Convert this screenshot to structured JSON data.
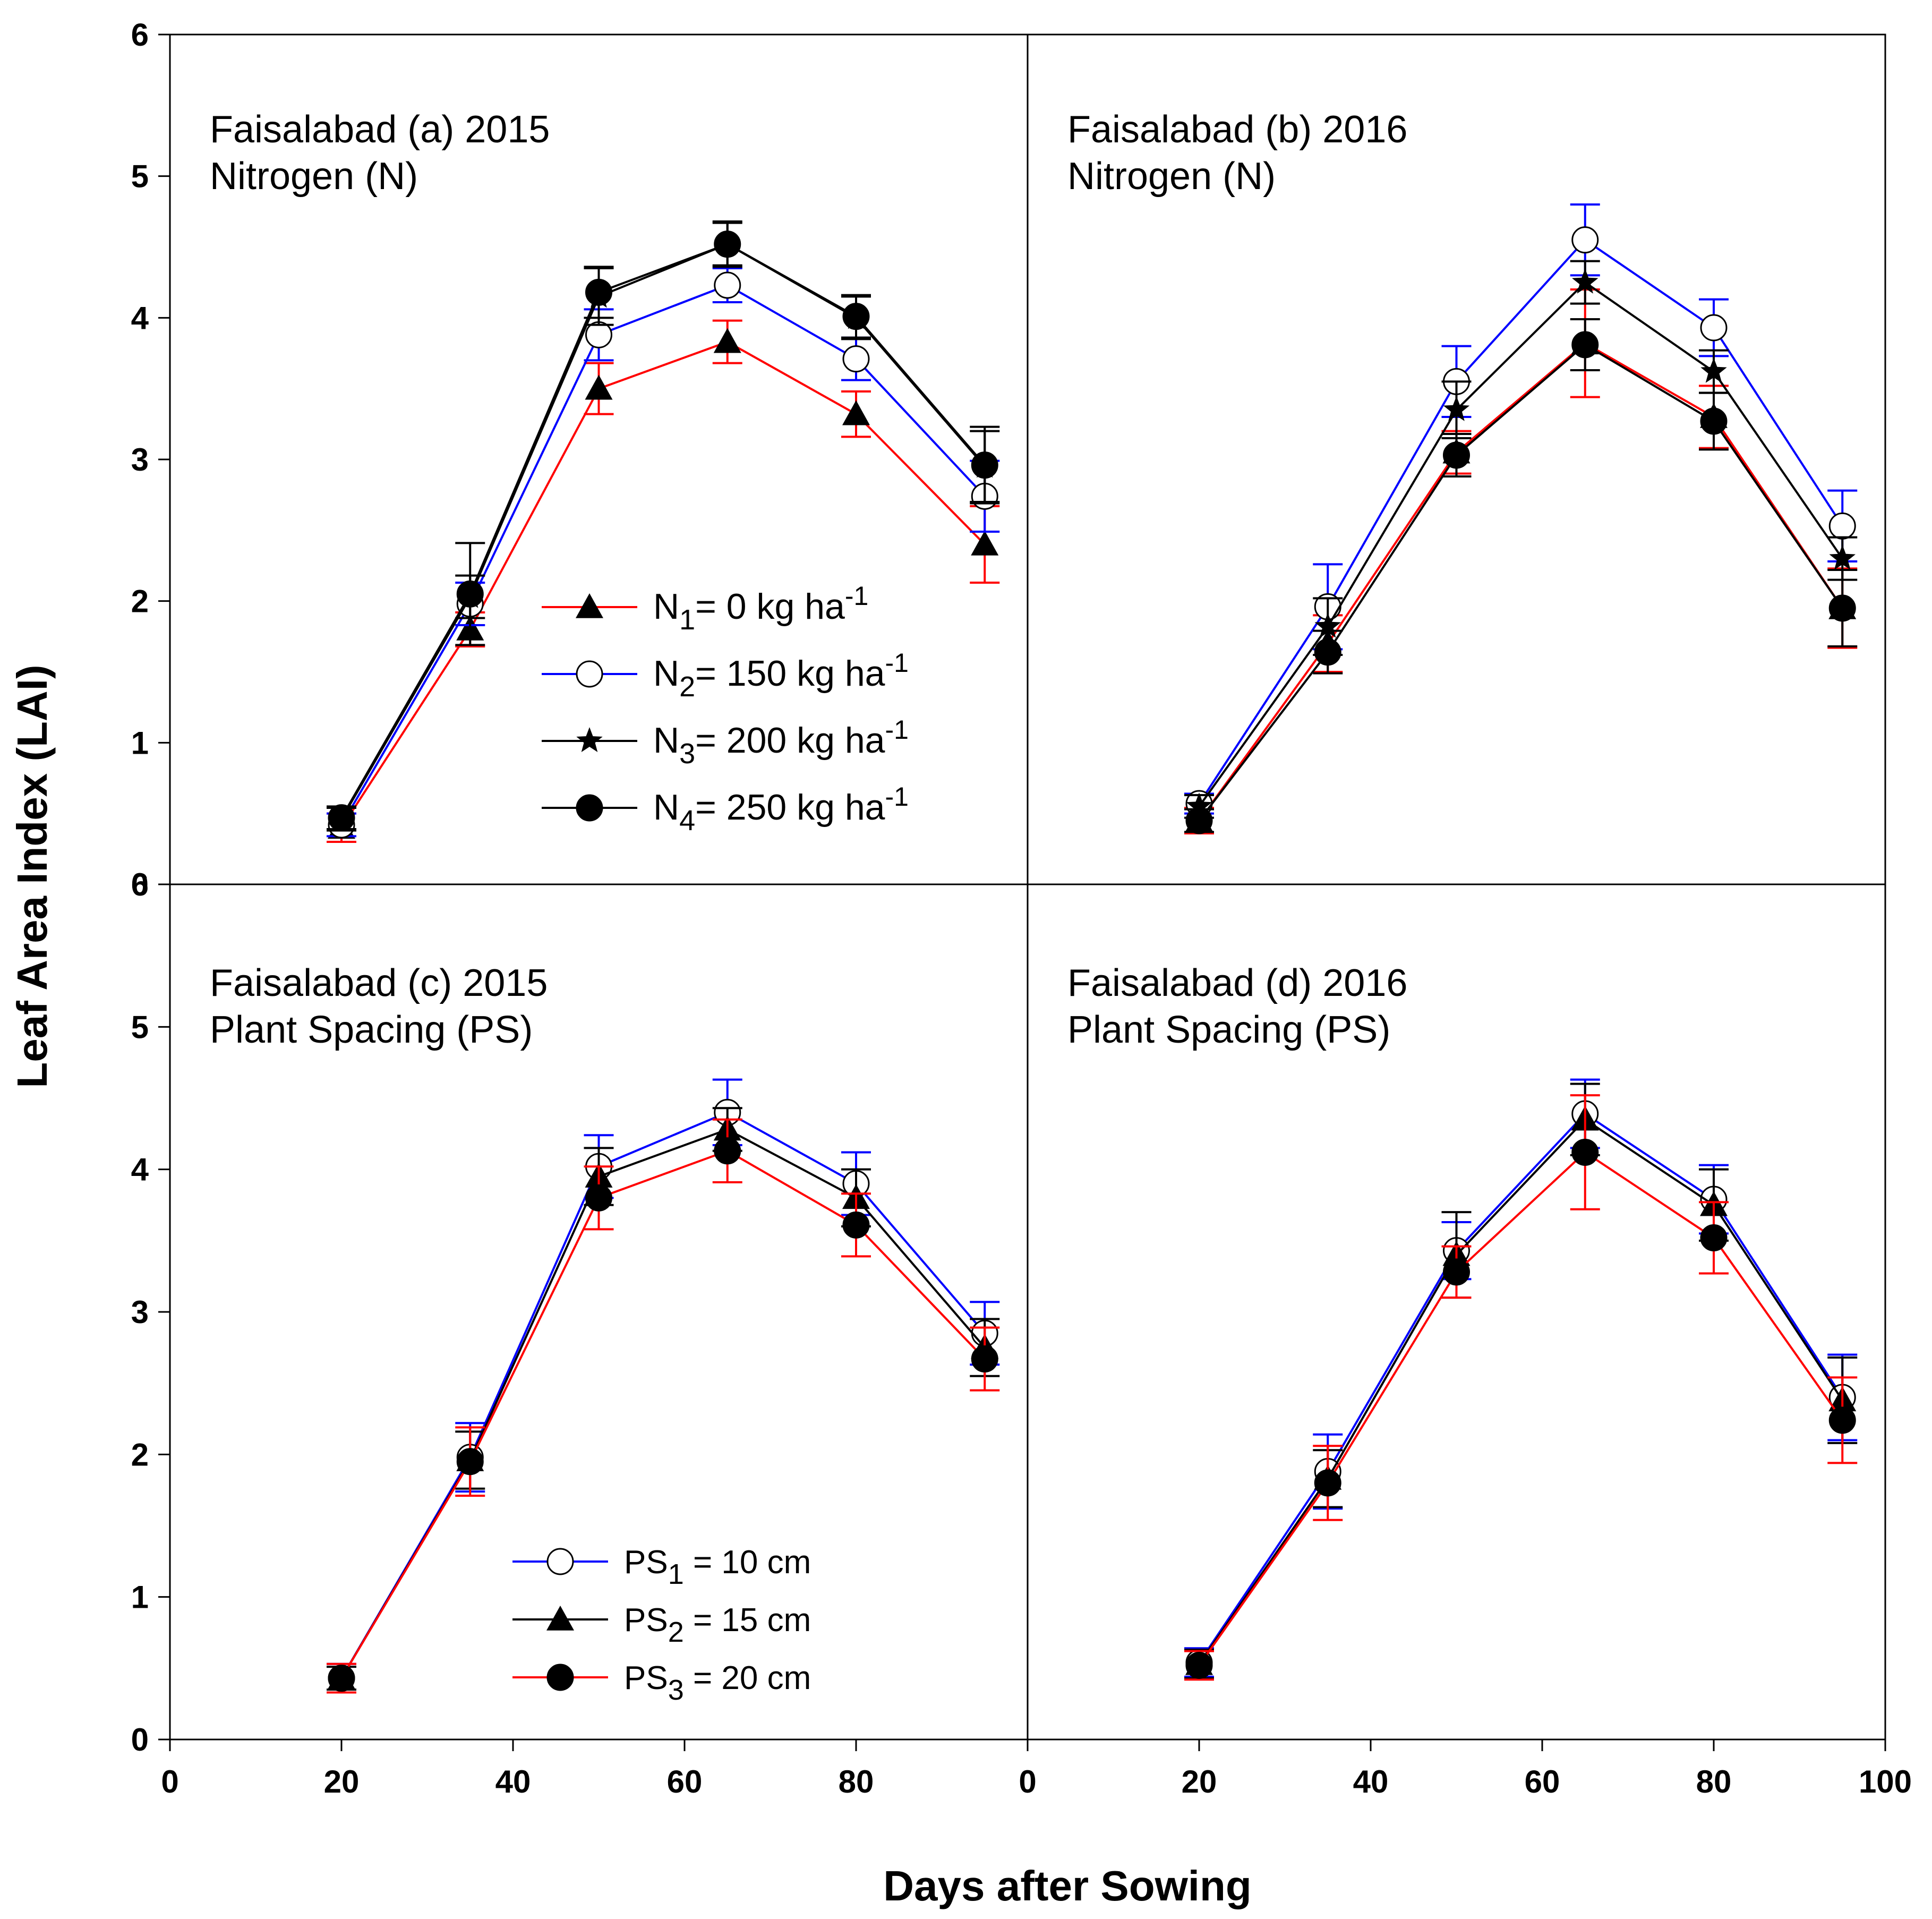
{
  "figure": {
    "ylabel": "Leaf Area Index (LAI)",
    "xlabel": "Days after Sowing",
    "x_ticks": [
      0,
      20,
      40,
      60,
      80
    ],
    "x_ticks_last_panel": [
      0,
      20,
      40,
      60,
      80,
      100
    ],
    "y_ticks_top": [
      0,
      1,
      2,
      3,
      4,
      5,
      6
    ],
    "y_ticks_bottom": [
      0,
      1,
      2,
      3,
      4,
      5,
      6
    ]
  },
  "colors": {
    "red": "#ff0000",
    "blue": "#0000ff",
    "black": "#000000"
  },
  "chart_data": [
    {
      "type": "line",
      "panel": "a",
      "title_line1": "Faisalabad (a) 2015",
      "title_line2": "Nitrogen (N)",
      "x": [
        20,
        35,
        50,
        65,
        80,
        95
      ],
      "xlim": [
        0,
        100
      ],
      "ylim": [
        0,
        6
      ],
      "series": [
        {
          "name": "N1= 0 kg ha-1",
          "legend_main": "N",
          "legend_sub": "1",
          "legend_rest": "= 0 kg ha",
          "legend_sup": "-1",
          "color": "red",
          "marker": "triangle-filled",
          "values": [
            0.4,
            1.8,
            3.5,
            3.83,
            3.32,
            2.4
          ],
          "errors": [
            0.1,
            0.12,
            0.18,
            0.15,
            0.16,
            0.27
          ]
        },
        {
          "name": "N2= 150 kg ha-1",
          "legend_main": "N",
          "legend_sub": "2",
          "legend_rest": "= 150 kg ha",
          "legend_sup": "-1",
          "color": "blue",
          "marker": "circle-open",
          "values": [
            0.42,
            1.98,
            3.88,
            4.23,
            3.71,
            2.74
          ],
          "errors": [
            0.08,
            0.15,
            0.18,
            0.12,
            0.15,
            0.25
          ]
        },
        {
          "name": "N3= 200 kg ha-1",
          "legend_main": "N",
          "legend_sub": "3",
          "legend_rest": "= 200 kg ha",
          "legend_sup": "-1",
          "color": "black",
          "marker": "star",
          "values": [
            0.46,
            2.03,
            4.15,
            4.52,
            4.0,
            2.95
          ],
          "errors": [
            0.08,
            0.15,
            0.2,
            0.15,
            0.15,
            0.25
          ]
        },
        {
          "name": "N4= 250 kg ha-1",
          "legend_main": "N",
          "legend_sub": "4",
          "legend_rest": "= 250 kg ha",
          "legend_sup": "-1",
          "color": "black",
          "marker": "circle-filled",
          "values": [
            0.47,
            2.05,
            4.18,
            4.52,
            4.01,
            2.96
          ],
          "errors": [
            0.08,
            0.36,
            0.18,
            0.16,
            0.15,
            0.27
          ]
        }
      ]
    },
    {
      "type": "line",
      "panel": "b",
      "title_line1": "Faisalabad (b) 2016",
      "title_line2": "Nitrogen (N)",
      "x": [
        20,
        35,
        50,
        65,
        80,
        95
      ],
      "xlim": [
        0,
        100
      ],
      "ylim": [
        0,
        6
      ],
      "series": [
        {
          "name": "N1",
          "color": "red",
          "marker": "triangle-filled",
          "values": [
            0.45,
            1.7,
            3.05,
            3.82,
            3.3,
            1.95
          ],
          "errors": [
            0.09,
            0.2,
            0.15,
            0.38,
            0.22,
            0.28
          ]
        },
        {
          "name": "N2",
          "color": "blue",
          "marker": "circle-open",
          "values": [
            0.57,
            1.96,
            3.55,
            4.55,
            3.93,
            2.53
          ],
          "errors": [
            0.07,
            0.3,
            0.25,
            0.25,
            0.2,
            0.25
          ]
        },
        {
          "name": "N3",
          "color": "black",
          "marker": "star",
          "values": [
            0.55,
            1.82,
            3.35,
            4.25,
            3.62,
            2.3
          ],
          "errors": [
            0.08,
            0.2,
            0.2,
            0.15,
            0.15,
            0.15
          ]
        },
        {
          "name": "N4",
          "color": "black",
          "marker": "circle-filled",
          "values": [
            0.45,
            1.64,
            3.03,
            3.81,
            3.27,
            1.95
          ],
          "errors": [
            0.08,
            0.15,
            0.15,
            0.18,
            0.2,
            0.27
          ]
        }
      ]
    },
    {
      "type": "line",
      "panel": "c",
      "title_line1": "Faisalabad (c) 2015",
      "title_line2": "Plant Spacing (PS)",
      "x": [
        20,
        35,
        50,
        65,
        80,
        95
      ],
      "xlim": [
        0,
        100
      ],
      "ylim": [
        0,
        6
      ],
      "series": [
        {
          "name": "PS1 = 10 cm",
          "legend_main": "PS",
          "legend_sub": "1",
          "legend_rest": " = 10 cm",
          "color": "blue",
          "marker": "circle-open",
          "values": [
            0.43,
            1.98,
            4.02,
            4.4,
            3.9,
            2.85
          ],
          "errors": [
            0.1,
            0.24,
            0.22,
            0.23,
            0.22,
            0.22
          ]
        },
        {
          "name": "PS2 = 15 cm",
          "legend_main": "PS",
          "legend_sub": "2",
          "legend_rest": " =  15 cm",
          "color": "black",
          "marker": "triangle-filled",
          "values": [
            0.43,
            1.96,
            3.95,
            4.28,
            3.8,
            2.75
          ],
          "errors": [
            0.08,
            0.2,
            0.2,
            0.15,
            0.2,
            0.2
          ]
        },
        {
          "name": "PS3 = 20 cm",
          "legend_main": "PS",
          "legend_sub": "3",
          "legend_rest": " = 20 cm",
          "color": "red",
          "marker": "circle-filled",
          "values": [
            0.43,
            1.95,
            3.8,
            4.13,
            3.61,
            2.67
          ],
          "errors": [
            0.1,
            0.24,
            0.22,
            0.22,
            0.22,
            0.22
          ]
        }
      ]
    },
    {
      "type": "line",
      "panel": "d",
      "title_line1": "Faisalabad (d) 2016",
      "title_line2": "Plant Spacing (PS)",
      "x": [
        20,
        35,
        50,
        65,
        80,
        95
      ],
      "xlim": [
        0,
        100
      ],
      "ylim": [
        0,
        6
      ],
      "series": [
        {
          "name": "PS1",
          "color": "blue",
          "marker": "circle-open",
          "values": [
            0.54,
            1.88,
            3.43,
            4.39,
            3.79,
            2.4
          ],
          "errors": [
            0.1,
            0.26,
            0.2,
            0.24,
            0.24,
            0.3
          ]
        },
        {
          "name": "PS2",
          "color": "black",
          "marker": "triangle-filled",
          "values": [
            0.53,
            1.83,
            3.4,
            4.35,
            3.75,
            2.38
          ],
          "errors": [
            0.1,
            0.2,
            0.3,
            0.25,
            0.25,
            0.3
          ]
        },
        {
          "name": "PS3",
          "color": "red",
          "marker": "circle-filled",
          "values": [
            0.52,
            1.8,
            3.28,
            4.12,
            3.52,
            2.24
          ],
          "errors": [
            0.1,
            0.26,
            0.18,
            0.4,
            0.25,
            0.3
          ]
        }
      ]
    }
  ]
}
